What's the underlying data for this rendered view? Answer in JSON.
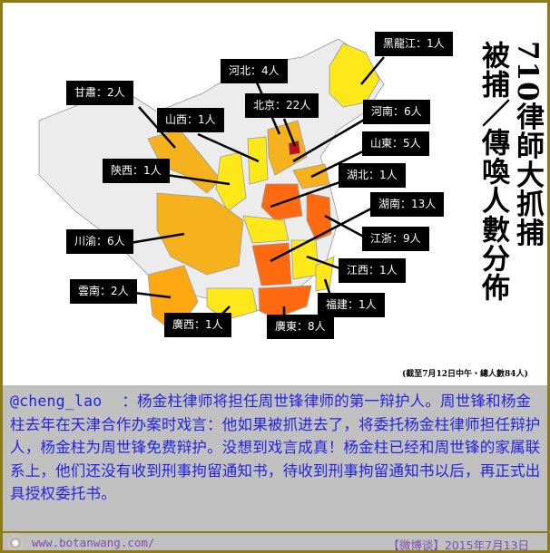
{
  "map": {
    "title_lines": [
      "710律師大抓捕",
      "被捕／傳喚人數分佈"
    ],
    "note": "(截至7月12日中午・總人數84人)",
    "colors": {
      "high": "#ff6a10",
      "mid": "#f5b21c",
      "low": "#ffe81a",
      "beijing": "#c0101a",
      "none": "#ececec"
    },
    "labels": [
      {
        "name": "黑龍江",
        "count": "黑龍江：1人"
      },
      {
        "name": "河北",
        "count": "河北：4人"
      },
      {
        "name": "甘肅",
        "count": "甘肅：2人"
      },
      {
        "name": "北京",
        "count": "北京：22人"
      },
      {
        "name": "河南",
        "count": "河南：6人"
      },
      {
        "name": "山西",
        "count": "山西：1人"
      },
      {
        "name": "山東",
        "count": "山東：5人"
      },
      {
        "name": "陝西",
        "count": "陝西：1人"
      },
      {
        "name": "湖北",
        "count": "湖北：1人"
      },
      {
        "name": "湖南",
        "count": "湖南：13人"
      },
      {
        "name": "川渝",
        "count": "川渝：6人"
      },
      {
        "name": "江浙",
        "count": "江浙：9人"
      },
      {
        "name": "江西",
        "count": "江西：1人"
      },
      {
        "name": "雲南",
        "count": "雲南：2人"
      },
      {
        "name": "福建",
        "count": "福建：1人"
      },
      {
        "name": "廣西",
        "count": "廣西：1人"
      },
      {
        "name": "廣東",
        "count": "廣東：8人"
      }
    ]
  },
  "post": {
    "user": "@cheng_lao",
    "text": "：杨金柱律师将担任周世锋律师的第一辩护人。周世锋和杨金柱去年在天津合作办案时戏言：他如果被抓进去了，将委托杨金柱律师担任辩护人，杨金柱为周世锋免费辩护。没想到戏言成真！杨金柱已经和周世锋的家属联系上，他们还没有收到刑事拘留通知书，待收到刑事拘留通知书以后，再正式出具授权委托书。"
  },
  "footer": {
    "site": "www.botanwang.com/",
    "date": "【微博谈】2015年7月13日"
  }
}
